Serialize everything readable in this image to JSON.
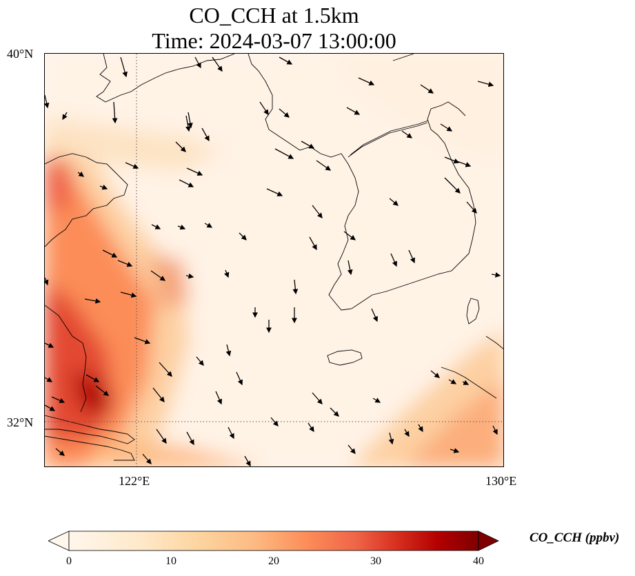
{
  "title": {
    "line1": "CO_CCH at 1.5km",
    "line2": "Time: 2024-03-07 13:00:00"
  },
  "axes": {
    "lat_labels": [
      "40°N",
      "32°N"
    ],
    "lon_labels": [
      "122°E",
      "130°E"
    ],
    "lon_range": [
      120,
      130
    ],
    "lat_range": [
      31,
      40
    ],
    "gridlines": "dotted at 122°E and 32°N"
  },
  "colorbar": {
    "label": "CO_CCH (ppbv)",
    "ticks": [
      "0",
      "10",
      "20",
      "30",
      "40"
    ],
    "vmin": 0,
    "vmax": 40,
    "colormap": "OrRd",
    "extend": "both"
  },
  "colors": {
    "low": "#fff5eb",
    "mid": "#fdb87b",
    "high": "#d7301f",
    "max": "#7f0000",
    "land_lines": "#000000"
  }
}
